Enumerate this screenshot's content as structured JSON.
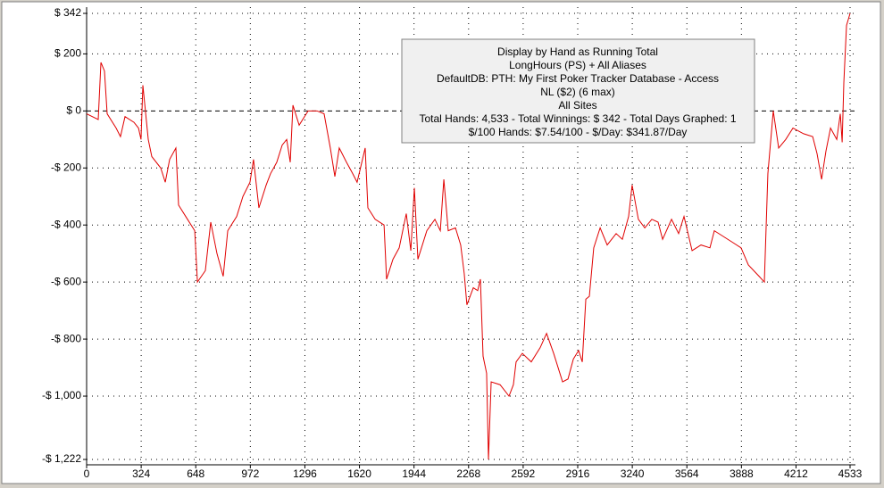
{
  "chart_data": {
    "type": "line",
    "annotations": [
      "Display by Hand as Running Total",
      "LongHours (PS) + All Aliases",
      "DefaultDB: PTH: My First Poker Tracker Database - Access",
      "NL ($2) (6 max)",
      "All Sites",
      "Total Hands: 4,533 - Total Winnings: $ 342 - Total Days Graphed: 1",
      "$/100 Hands: $7.54/100 - $/Day: $341.87/Day"
    ],
    "x": [
      0,
      69,
      85,
      106,
      122,
      175,
      201,
      228,
      281,
      308,
      323,
      334,
      366,
      387,
      440,
      467,
      493,
      530,
      546,
      599,
      642,
      658,
      705,
      737,
      774,
      811,
      838,
      891,
      928,
      970,
      991,
      1023,
      1066,
      1092,
      1129,
      1161,
      1188,
      1209,
      1225,
      1262,
      1315,
      1368,
      1410,
      1447,
      1474,
      1500,
      1543,
      1580,
      1606,
      1654,
      1670,
      1713,
      1766,
      1781,
      1819,
      1856,
      1898,
      1925,
      1946,
      1967,
      2020,
      2068,
      2100,
      2121,
      2147,
      2190,
      2221,
      2242,
      2258,
      2296,
      2322,
      2338,
      2354,
      2375,
      2386,
      2402,
      2455,
      2508,
      2534,
      2550,
      2587,
      2640,
      2693,
      2731,
      2773,
      2826,
      2858,
      2890,
      2921,
      2943,
      2964,
      2985,
      3011,
      3049,
      3091,
      3144,
      3181,
      3218,
      3239,
      3276,
      3314,
      3356,
      3393,
      3420,
      3473,
      3515,
      3547,
      3595,
      3648,
      3701,
      3727,
      3780,
      3833,
      3886,
      3929,
      3993,
      4024,
      4045,
      4077,
      4109,
      4151,
      4194,
      4257,
      4311,
      4337,
      4364,
      4390,
      4417,
      4454,
      4475,
      4486,
      4496,
      4512,
      4533
    ],
    "series": [
      {
        "color": "#e00000",
        "values": [
          -10,
          -30,
          170,
          140,
          -10,
          -60,
          -90,
          -20,
          -40,
          -60,
          -100,
          90,
          -100,
          -160,
          -200,
          -250,
          -170,
          -130,
          -330,
          -380,
          -420,
          -600,
          -560,
          -390,
          -500,
          -580,
          -420,
          -370,
          -300,
          -250,
          -170,
          -340,
          -260,
          -220,
          -180,
          -120,
          -100,
          -180,
          20,
          -50,
          0,
          0,
          -10,
          -130,
          -230,
          -130,
          -180,
          -220,
          -250,
          -130,
          -340,
          -380,
          -400,
          -590,
          -520,
          -480,
          -360,
          -490,
          -270,
          -520,
          -420,
          -380,
          -420,
          -240,
          -420,
          -410,
          -470,
          -570,
          -680,
          -620,
          -630,
          -590,
          -860,
          -920,
          -1222,
          -950,
          -960,
          -1000,
          -960,
          -880,
          -850,
          -880,
          -830,
          -780,
          -850,
          -950,
          -940,
          -870,
          -840,
          -880,
          -660,
          -650,
          -480,
          -410,
          -470,
          -430,
          -450,
          -370,
          -260,
          -380,
          -410,
          -380,
          -390,
          -450,
          -380,
          -430,
          -370,
          -490,
          -470,
          -480,
          -420,
          -440,
          -460,
          -480,
          -540,
          -580,
          -600,
          -220,
          0,
          -130,
          -100,
          -60,
          -80,
          -90,
          -150,
          -240,
          -140,
          -60,
          -100,
          -10,
          -110,
          100,
          300,
          342
        ]
      }
    ],
    "xlim": [
      0,
      4533
    ],
    "xticks": [
      0,
      324,
      648,
      972,
      1296,
      1620,
      1944,
      2268,
      2592,
      2916,
      3240,
      3564,
      3888,
      4212,
      4533
    ],
    "ylim": [
      -1222,
      342
    ],
    "yticks": [
      {
        "value": 342,
        "label": "$ 342"
      },
      {
        "value": 200,
        "label": "$ 200"
      },
      {
        "value": 0,
        "label": "$ 0"
      },
      {
        "value": -200,
        "label": "-$ 200"
      },
      {
        "value": -400,
        "label": "-$ 400"
      },
      {
        "value": -600,
        "label": "-$ 600"
      },
      {
        "value": -800,
        "label": "-$ 800"
      },
      {
        "value": -1000,
        "label": "-$ 1,000"
      },
      {
        "value": -1222,
        "label": "-$ 1,222"
      }
    ],
    "grid": true
  }
}
